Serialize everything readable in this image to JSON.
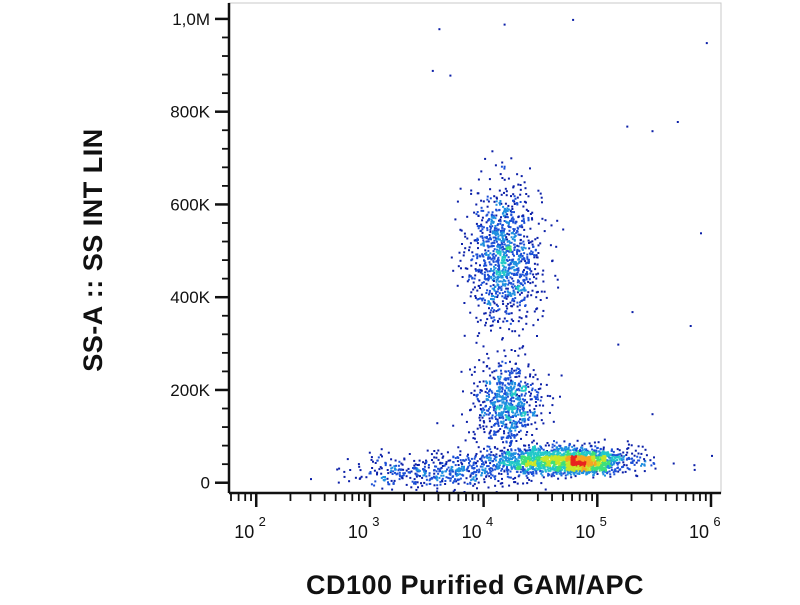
{
  "chart_data": {
    "type": "scatter",
    "title": "",
    "xlabel": "CD100 Purified GAM/APC",
    "ylabel": "SS-A :: SS INT LIN",
    "x_scale": "log",
    "y_scale": "linear",
    "xlim": [
      60,
      1200000
    ],
    "ylim": [
      -20000,
      1030000
    ],
    "x_ticks": [
      {
        "base": "10",
        "exp": "2",
        "value": 100
      },
      {
        "base": "10",
        "exp": "3",
        "value": 1000
      },
      {
        "base": "10",
        "exp": "4",
        "value": 10000
      },
      {
        "base": "10",
        "exp": "5",
        "value": 100000
      },
      {
        "base": "10",
        "exp": "6",
        "value": 1000000
      }
    ],
    "y_ticks": [
      {
        "label": "0",
        "value": 0
      },
      {
        "label": "200K",
        "value": 200000
      },
      {
        "label": "400K",
        "value": 400000
      },
      {
        "label": "600K",
        "value": 600000
      },
      {
        "label": "800K",
        "value": 800000
      },
      {
        "label": "1,0M",
        "value": 1000000
      }
    ],
    "grid": false,
    "legend": "none",
    "density_colors": [
      "#0b1fa8",
      "#1b4fd6",
      "#1e8fe0",
      "#22c9c9",
      "#3ee07a",
      "#c8e628",
      "#f5a623",
      "#e8231e"
    ],
    "populations": [
      {
        "x_median": 15000,
        "x_spread_decades": 0.16,
        "y_center": 490000,
        "y_spread": 75000,
        "count": 1100
      },
      {
        "x_median": 16000,
        "x_spread_decades": 0.15,
        "y_center": 170000,
        "y_spread": 45000,
        "count": 700
      },
      {
        "x_median": 45000,
        "x_spread_decades": 0.32,
        "y_center": 50000,
        "y_spread": 15000,
        "count": 1600
      },
      {
        "x_median": 75000,
        "x_spread_decades": 0.13,
        "y_center": 45000,
        "y_spread": 10000,
        "count": 500
      },
      {
        "x_median": 4000,
        "x_spread_decades": 0.4,
        "y_center": 25000,
        "y_spread": 18000,
        "count": 450
      }
    ],
    "sparse_points": [
      [
        4000,
        980000
      ],
      [
        15000,
        990000
      ],
      [
        60000,
        1000000
      ],
      [
        900000,
        950000
      ],
      [
        5000,
        880000
      ],
      [
        3500,
        890000
      ],
      [
        180000,
        770000
      ],
      [
        300000,
        760000
      ],
      [
        800000,
        540000
      ],
      [
        500000,
        780000
      ],
      [
        200000,
        370000
      ],
      [
        650000,
        340000
      ],
      [
        300000,
        150000
      ],
      [
        150000,
        300000
      ],
      [
        1000000,
        60000
      ],
      [
        700000,
        40000
      ]
    ]
  }
}
